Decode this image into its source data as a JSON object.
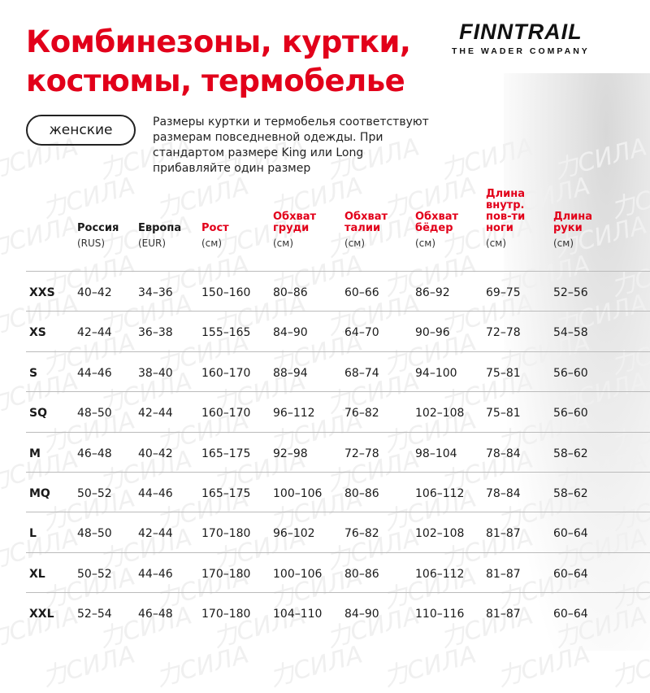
{
  "title": [
    "Комбинезоны, куртки,",
    "костюмы, термобелье"
  ],
  "logo": {
    "name": "FINNTRAIL",
    "tagline": "THE WADER COMPANY"
  },
  "category": "женские",
  "note": "Размеры куртки и термобелья соответствуют размерам повседневной одежды. При стандартом размере King или Long прибавляйте один размер",
  "watermark": "力СИЛА",
  "headers": [
    {
      "lines": [
        "Россия"
      ],
      "unit": "(RUS)",
      "red": false
    },
    {
      "lines": [
        "Европа"
      ],
      "unit": "(EUR)",
      "red": false
    },
    {
      "lines": [
        "Рост"
      ],
      "unit": "(см)",
      "red": true
    },
    {
      "lines": [
        "Обхват",
        "груди"
      ],
      "unit": "(см)",
      "red": true
    },
    {
      "lines": [
        "Обхват",
        "талии"
      ],
      "unit": "(см)",
      "red": true
    },
    {
      "lines": [
        "Обхват",
        "бёдер"
      ],
      "unit": "(см)",
      "red": true
    },
    {
      "lines": [
        "Длина",
        "внутр.",
        "пов-ти",
        "ноги"
      ],
      "unit": "(см)",
      "red": true
    },
    {
      "lines": [
        "Длина",
        "руки"
      ],
      "unit": "(см)",
      "red": true
    }
  ],
  "rows": [
    [
      "XXS",
      "40–42",
      "34–36",
      "150–160",
      "80–86",
      "60–66",
      "86–92",
      "69–75",
      "52–56"
    ],
    [
      "XS",
      "42–44",
      "36–38",
      "155–165",
      "84–90",
      "64–70",
      "90–96",
      "72–78",
      "54–58"
    ],
    [
      "S",
      "44–46",
      "38–40",
      "160–170",
      "88–94",
      "68–74",
      "94–100",
      "75–81",
      "56–60"
    ],
    [
      "SQ",
      "48–50",
      "42–44",
      "160–170",
      "96–112",
      "76–82",
      "102–108",
      "75–81",
      "56–60"
    ],
    [
      "M",
      "46–48",
      "40–42",
      "165–175",
      "92–98",
      "72–78",
      "98–104",
      "78–84",
      "58–62"
    ],
    [
      "MQ",
      "50–52",
      "44–46",
      "165–175",
      "100–106",
      "80–86",
      "106–112",
      "78–84",
      "58–62"
    ],
    [
      "L",
      "48–50",
      "42–44",
      "170–180",
      "96–102",
      "76–82",
      "102–108",
      "81–87",
      "60–64"
    ],
    [
      "XL",
      "50–52",
      "44–46",
      "170–180",
      "100–106",
      "80–86",
      "106–112",
      "81–87",
      "60–64"
    ],
    [
      "XXL",
      "52–54",
      "46–48",
      "170–180",
      "104–110",
      "84–90",
      "110–116",
      "81–87",
      "60–64"
    ]
  ]
}
